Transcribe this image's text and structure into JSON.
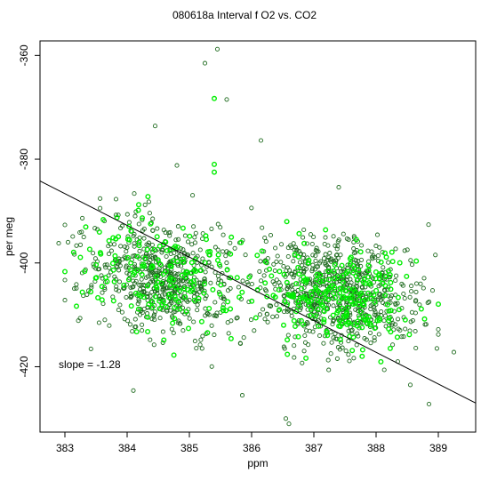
{
  "chart_data": {
    "type": "scatter",
    "title": "080618a   Interval f O2 vs. CO2",
    "xlabel": "ppm",
    "ylabel": "per meg",
    "xlim": [
      382.6,
      389.6
    ],
    "ylim": [
      -432.6,
      -357.2
    ],
    "xticks": [
      383,
      384,
      385,
      386,
      387,
      388,
      389
    ],
    "yticks": [
      -420,
      -400,
      -380,
      -360
    ],
    "grid": false,
    "legend": "none",
    "annotation": "slope =  -1.28",
    "annotation_pos": {
      "x": 382.9,
      "y": -419.6
    },
    "fit_line": {
      "slope": -1.28,
      "x": [
        382.6,
        389.6
      ],
      "y": [
        -384.2,
        -427.0
      ]
    },
    "point_cloud": {
      "note_hidden": true,
      "center_x": 386.2,
      "center_y": -404.5,
      "sd_x": 1.25,
      "resid_sd": 5.2,
      "n_dark": 1300,
      "n_bright": 420
    },
    "outliers": [
      {
        "x": 385.45,
        "y": -358.8,
        "series": "dark"
      },
      {
        "x": 385.25,
        "y": -361.5,
        "series": "dark"
      },
      {
        "x": 385.6,
        "y": -368.5,
        "series": "dark"
      },
      {
        "x": 385.4,
        "y": -368.3,
        "series": "bright"
      },
      {
        "x": 384.45,
        "y": -373.6,
        "series": "dark"
      },
      {
        "x": 386.15,
        "y": -376.4,
        "series": "dark"
      },
      {
        "x": 385.4,
        "y": -381.0,
        "series": "bright"
      },
      {
        "x": 385.4,
        "y": -382.5,
        "series": "bright"
      },
      {
        "x": 384.8,
        "y": -381.2,
        "series": "dark"
      },
      {
        "x": 387.4,
        "y": -385.4,
        "series": "dark"
      },
      {
        "x": 384.1,
        "y": -424.6,
        "series": "dark"
      },
      {
        "x": 386.55,
        "y": -430.0,
        "series": "dark"
      },
      {
        "x": 386.6,
        "y": -431.0,
        "series": "dark"
      },
      {
        "x": 385.85,
        "y": -425.5,
        "series": "dark"
      },
      {
        "x": 388.55,
        "y": -423.5,
        "series": "dark"
      },
      {
        "x": 388.85,
        "y": -427.2,
        "series": "dark"
      },
      {
        "x": 389.25,
        "y": -417.2,
        "series": "dark"
      },
      {
        "x": 382.9,
        "y": -396.2,
        "series": "dark"
      },
      {
        "x": 383.05,
        "y": -396.0,
        "series": "dark"
      }
    ],
    "series_colors": {
      "dark": "#1f6b1f",
      "bright": "#00ee00",
      "line": "#000000"
    }
  }
}
